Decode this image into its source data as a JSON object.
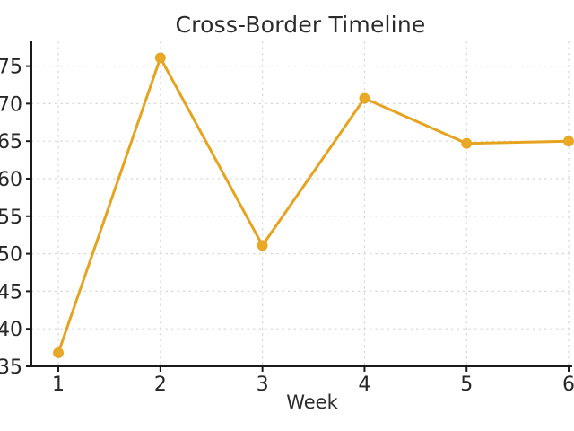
{
  "chart_data": {
    "type": "line",
    "title": "Cross-Border Timeline",
    "xlabel": "Week",
    "ylabel": "",
    "x": [
      1,
      2,
      3,
      4,
      5,
      6
    ],
    "series": [
      {
        "name": "cross-border",
        "values": [
          36.8,
          76.1,
          51.1,
          70.7,
          64.7,
          65.0
        ]
      }
    ],
    "xticks": [
      1,
      2,
      3,
      4,
      5,
      6
    ],
    "yticks": [
      35,
      40,
      45,
      50,
      55,
      60,
      65,
      70,
      75
    ],
    "xlim": [
      0.736,
      6.035
    ],
    "ylim": [
      35,
      78.3
    ],
    "grid": true,
    "legend": "none",
    "colors": {
      "line": "#E6A320",
      "marker": "#E9A825",
      "axis": "#1a1a1a",
      "grid": "#d8d8d8",
      "text": "#2b2b2b",
      "background": "#ffffff"
    }
  }
}
